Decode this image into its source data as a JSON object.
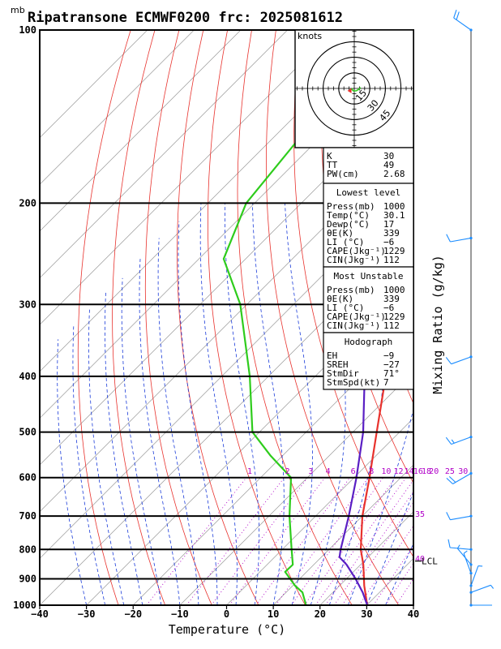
{
  "title": "Ripatransone ECMWF0200 frc: 2025081612",
  "pressure_unit_label": "mb",
  "hodograph": {
    "unit_label": "knots",
    "ring_labels": [
      "15",
      "30",
      "45"
    ]
  },
  "indices": [
    {
      "label": "K",
      "value": "30"
    },
    {
      "label": "TT",
      "value": "49"
    },
    {
      "label": "PW(cm)",
      "value": "2.68"
    }
  ],
  "lowest_level": {
    "heading": "Lowest level",
    "rows": [
      {
        "label": "Press(mb)",
        "value": "1000"
      },
      {
        "label": "Temp(°C)",
        "value": "30.1"
      },
      {
        "label": "Dewp(°C)",
        "value": "17"
      },
      {
        "label": "θE(K)",
        "value": "339"
      },
      {
        "label": "LI (°C)",
        "value": "−6"
      },
      {
        "label": "CAPE(Jkg⁻¹)",
        "value": "1229"
      },
      {
        "label": "CIN(Jkg⁻¹)",
        "value": "112"
      }
    ]
  },
  "most_unstable": {
    "heading": "Most Unstable",
    "rows": [
      {
        "label": "Press(mb)",
        "value": "1000"
      },
      {
        "label": "θE(K)",
        "value": "339"
      },
      {
        "label": "LI (°C)",
        "value": "−6"
      },
      {
        "label": "CAPE(Jkg⁻¹)",
        "value": "1229"
      },
      {
        "label": "CIN(Jkg⁻¹)",
        "value": "112"
      }
    ]
  },
  "hodograph_box": {
    "heading": "Hodograph",
    "rows": [
      {
        "label": "EH",
        "value": "−9"
      },
      {
        "label": "SREH",
        "value": "−27"
      },
      {
        "label": "StmDir",
        "value": "71°"
      },
      {
        "label": "StmSpd(kt)",
        "value": "7"
      }
    ]
  },
  "lcl_label": "LCL",
  "mixing_ratio_axis_label": "Mixing Ratio (g/kg)",
  "mixing_ratio_top_labels": [
    "1",
    "2",
    "3",
    "4",
    "6",
    "8",
    "10",
    "12",
    "14",
    "16",
    "18",
    "20",
    "25",
    "30"
  ],
  "mixing_ratio_side_labels": [
    "35",
    "40"
  ],
  "colors": {
    "temperature": "#e8322d",
    "dewpoint": "#2ecc1c",
    "parcel": "#5a1fc4",
    "dry_adiabat": "#e8322d",
    "moist_adiabat": "#1a3bd9",
    "mixing_ratio": "#b000c8",
    "isotherm": "#999999",
    "wind": "#1a8cff"
  },
  "chart_data": {
    "type": "line",
    "title": "Ripatransone ECMWF0200 frc: 2025081612",
    "xlabel": "Temperature (°C)",
    "ylabel": "mb",
    "xlim": [
      -40,
      40
    ],
    "ylim": [
      1000,
      100
    ],
    "y_scale": "log",
    "x_ticks": [
      -40,
      -30,
      -20,
      -10,
      0,
      10,
      20,
      30,
      40
    ],
    "x_tick_labels": [
      "−40",
      "−30",
      "−20",
      "−10",
      "0",
      "10",
      "20",
      "30",
      "40"
    ],
    "y_ticks": [
      1000,
      900,
      800,
      700,
      600,
      500,
      400,
      300,
      200,
      100
    ],
    "y_tick_labels": [
      "1000",
      "900",
      "800",
      "700",
      "600",
      "500",
      "400",
      "300",
      "200",
      "100"
    ],
    "isotherm_skew_degrees": 45,
    "series": [
      {
        "role": "temperature",
        "points": [
          [
            1000,
            30.1
          ],
          [
            925,
            25.3
          ],
          [
            850,
            20.6
          ],
          [
            800,
            16.8
          ],
          [
            700,
            10.0
          ],
          [
            600,
            3.3
          ],
          [
            500,
            -4.9
          ],
          [
            400,
            -14.9
          ],
          [
            300,
            -29.2
          ],
          [
            250,
            -38.8
          ],
          [
            200,
            -51.0
          ],
          [
            150,
            -64.4
          ],
          [
            100,
            -77.0
          ]
        ]
      },
      {
        "role": "dewpoint",
        "points": [
          [
            1000,
            17.0
          ],
          [
            950,
            13.5
          ],
          [
            925,
            10.5
          ],
          [
            875,
            5.4
          ],
          [
            850,
            5.5
          ],
          [
            800,
            2.0
          ],
          [
            700,
            -5.6
          ],
          [
            600,
            -13.5
          ],
          [
            550,
            -22.5
          ],
          [
            500,
            -31.5
          ],
          [
            400,
            -44.0
          ],
          [
            300,
            -61.4
          ],
          [
            250,
            -74.7
          ],
          [
            200,
            -81.8
          ],
          [
            100,
            -88.5
          ]
        ]
      },
      {
        "role": "parcel",
        "points": [
          [
            1000,
            30.1
          ],
          [
            950,
            26.4
          ],
          [
            900,
            22.0
          ],
          [
            850,
            17.0
          ],
          [
            825,
            13.9
          ],
          [
            800,
            12.5
          ],
          [
            700,
            7.1
          ],
          [
            600,
            0.5
          ],
          [
            500,
            -7.8
          ],
          [
            400,
            -19.4
          ],
          [
            300,
            -35.8
          ],
          [
            250,
            -46.8
          ],
          [
            200,
            -58.0
          ],
          [
            150,
            -73.0
          ],
          [
            120,
            -82.0
          ]
        ]
      }
    ],
    "lcl_pressure": 838,
    "hodograph_rings_kt": [
      15,
      30,
      45
    ],
    "storm_motion": {
      "direction_deg": 71,
      "speed_kt": 7
    },
    "wind_barbs": [
      {
        "pressure": 100,
        "direction": 305,
        "speed_kt": 20
      },
      {
        "pressure": 230,
        "direction": 260,
        "speed_kt": 10
      },
      {
        "pressure": 370,
        "direction": 250,
        "speed_kt": 12
      },
      {
        "pressure": 510,
        "direction": 250,
        "speed_kt": 15
      },
      {
        "pressure": 590,
        "direction": 240,
        "speed_kt": 20
      },
      {
        "pressure": 700,
        "direction": 260,
        "speed_kt": 12
      },
      {
        "pressure": 800,
        "direction": 275,
        "speed_kt": 10
      },
      {
        "pressure": 850,
        "direction": 320,
        "speed_kt": 6
      },
      {
        "pressure": 880,
        "direction": 340,
        "speed_kt": 5
      },
      {
        "pressure": 925,
        "direction": 20,
        "speed_kt": 5
      },
      {
        "pressure": 950,
        "direction": 70,
        "speed_kt": 5
      },
      {
        "pressure": 1000,
        "direction": 90,
        "speed_kt": 3
      }
    ]
  }
}
